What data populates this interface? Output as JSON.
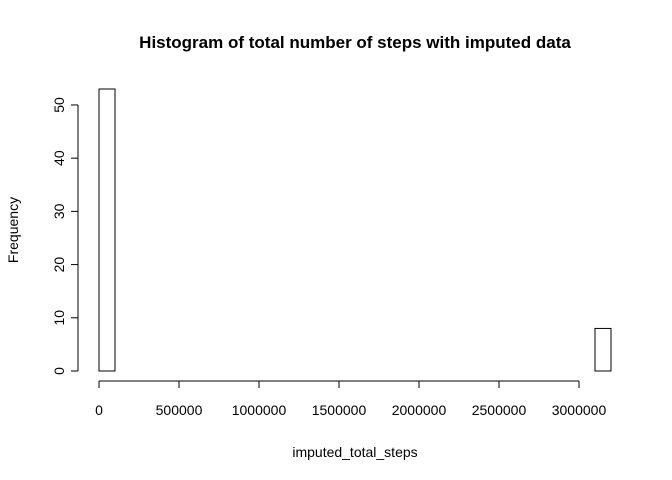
{
  "chart_data": {
    "type": "bar",
    "title": "Histogram of total number of steps with imputed data",
    "xlabel": "imputed_total_steps",
    "ylabel": "Frequency",
    "bin_width": 100000,
    "bins": [
      {
        "start": 0,
        "end": 100000,
        "count": 53
      },
      {
        "start": 100000,
        "end": 200000,
        "count": 0
      },
      {
        "start": 200000,
        "end": 300000,
        "count": 0
      },
      {
        "start": 300000,
        "end": 400000,
        "count": 0
      },
      {
        "start": 400000,
        "end": 500000,
        "count": 0
      },
      {
        "start": 500000,
        "end": 600000,
        "count": 0
      },
      {
        "start": 600000,
        "end": 700000,
        "count": 0
      },
      {
        "start": 700000,
        "end": 800000,
        "count": 0
      },
      {
        "start": 800000,
        "end": 900000,
        "count": 0
      },
      {
        "start": 900000,
        "end": 1000000,
        "count": 0
      },
      {
        "start": 1000000,
        "end": 1100000,
        "count": 0
      },
      {
        "start": 1100000,
        "end": 1200000,
        "count": 0
      },
      {
        "start": 1200000,
        "end": 1300000,
        "count": 0
      },
      {
        "start": 1300000,
        "end": 1400000,
        "count": 0
      },
      {
        "start": 1400000,
        "end": 1500000,
        "count": 0
      },
      {
        "start": 1500000,
        "end": 1600000,
        "count": 0
      },
      {
        "start": 1600000,
        "end": 1700000,
        "count": 0
      },
      {
        "start": 1700000,
        "end": 1800000,
        "count": 0
      },
      {
        "start": 1800000,
        "end": 1900000,
        "count": 0
      },
      {
        "start": 1900000,
        "end": 2000000,
        "count": 0
      },
      {
        "start": 2000000,
        "end": 2100000,
        "count": 0
      },
      {
        "start": 2100000,
        "end": 2200000,
        "count": 0
      },
      {
        "start": 2200000,
        "end": 2300000,
        "count": 0
      },
      {
        "start": 2300000,
        "end": 2400000,
        "count": 0
      },
      {
        "start": 2400000,
        "end": 2500000,
        "count": 0
      },
      {
        "start": 2500000,
        "end": 2600000,
        "count": 0
      },
      {
        "start": 2600000,
        "end": 2700000,
        "count": 0
      },
      {
        "start": 2700000,
        "end": 2800000,
        "count": 0
      },
      {
        "start": 2800000,
        "end": 2900000,
        "count": 0
      },
      {
        "start": 2900000,
        "end": 3000000,
        "count": 0
      },
      {
        "start": 3000000,
        "end": 3100000,
        "count": 0
      },
      {
        "start": 3100000,
        "end": 3200000,
        "count": 8
      }
    ],
    "x_ticks": [
      0,
      500000,
      1000000,
      1500000,
      2000000,
      2500000,
      3000000
    ],
    "y_ticks": [
      0,
      10,
      20,
      30,
      40,
      50
    ],
    "xlim": [
      0,
      3200000
    ],
    "ylim": [
      0,
      53
    ],
    "grid": false,
    "legend": "none",
    "bar_fill": "#ffffff",
    "bar_stroke": "#000000"
  }
}
